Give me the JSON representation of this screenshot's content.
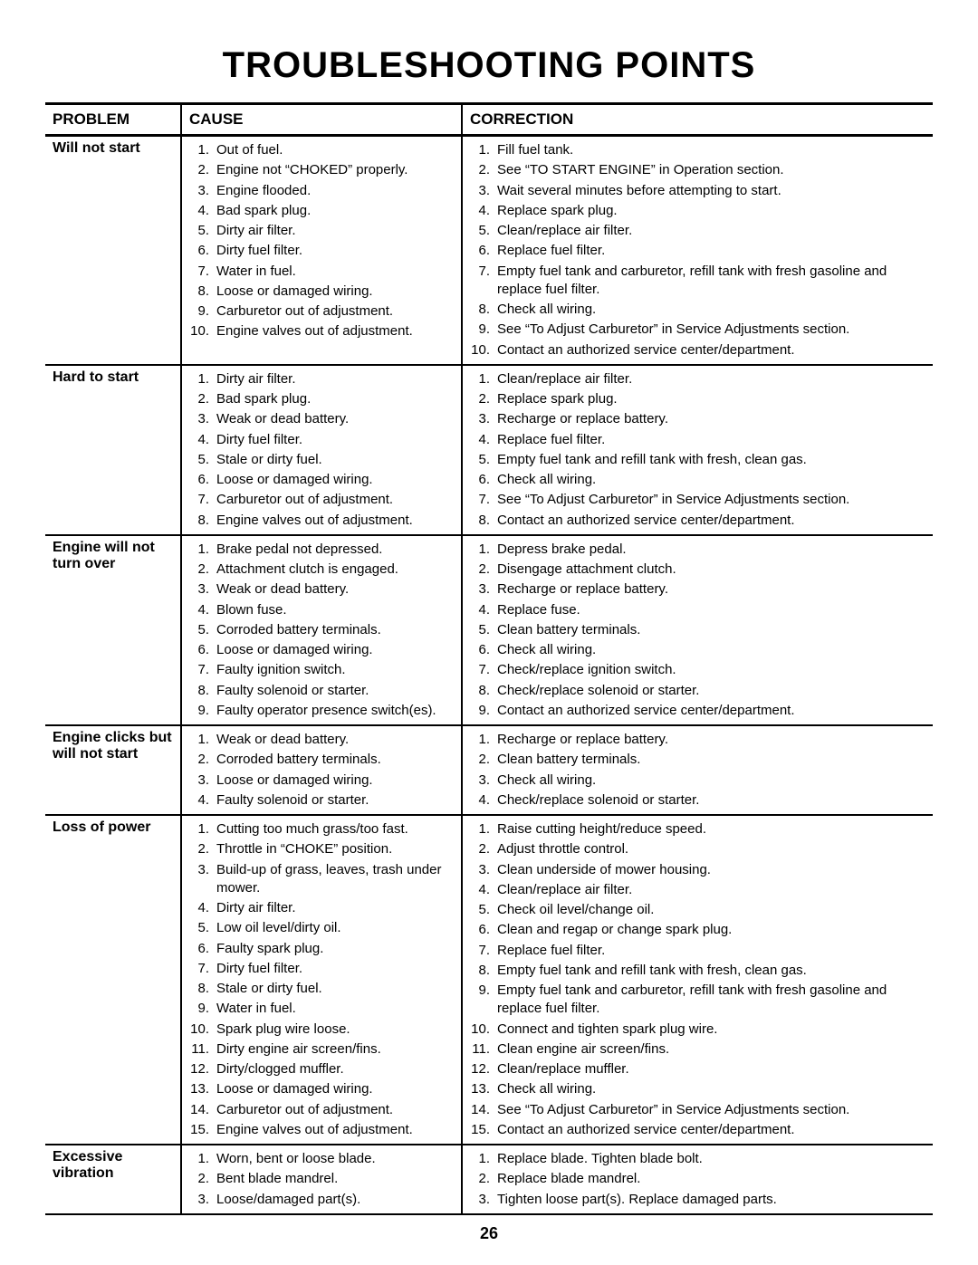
{
  "title": "TROUBLESHOOTING POINTS",
  "page_number": "26",
  "headers": {
    "problem": "PROBLEM",
    "cause": "CAUSE",
    "correction": "CORRECTION"
  },
  "rows": [
    {
      "problem": "Will not start",
      "causes": [
        "Out of fuel.",
        "Engine not “CHOKED” properly.",
        "Engine flooded.",
        "Bad spark plug.",
        "Dirty air filter.",
        "Dirty fuel filter.",
        "Water in fuel.",
        "Loose or damaged wiring.",
        "Carburetor out of adjustment.",
        "Engine valves out of adjustment."
      ],
      "corrections": [
        "Fill fuel tank.",
        "See “TO START ENGINE” in Operation section.",
        "Wait several minutes before attempting to start.",
        "Replace spark plug.",
        "Clean/replace air filter.",
        "Replace fuel filter.",
        "Empty fuel tank and carburetor, refill tank with fresh gasoline and replace fuel filter.",
        "Check all wiring.",
        "See “To Adjust Carburetor” in Service Adjustments section.",
        "Contact an authorized service center/department."
      ]
    },
    {
      "problem": "Hard to start",
      "causes": [
        "Dirty air filter.",
        "Bad spark plug.",
        "Weak or dead battery.",
        "Dirty fuel filter.",
        "Stale or dirty fuel.",
        "Loose or damaged wiring.",
        "Carburetor out of adjustment.",
        "Engine valves out of adjustment."
      ],
      "corrections": [
        "Clean/replace air filter.",
        "Replace spark plug.",
        "Recharge or replace battery.",
        "Replace fuel filter.",
        "Empty fuel tank and refill tank with fresh, clean gas.",
        "Check all wiring.",
        "See “To Adjust Carburetor” in Service Adjustments section.",
        "Contact an authorized service center/department."
      ]
    },
    {
      "problem": "Engine will not turn over",
      "causes": [
        "Brake pedal not depressed.",
        "Attachment clutch is engaged.",
        "Weak or dead battery.",
        "Blown fuse.",
        "Corroded battery terminals.",
        "Loose or damaged wiring.",
        "Faulty ignition switch.",
        "Faulty solenoid or starter.",
        "Faulty operator presence switch(es)."
      ],
      "corrections": [
        "Depress brake pedal.",
        "Disengage attachment clutch.",
        "Recharge or replace battery.",
        "Replace fuse.",
        "Clean battery terminals.",
        "Check all wiring.",
        "Check/replace ignition switch.",
        "Check/replace solenoid or starter.",
        "Contact an authorized service center/department."
      ]
    },
    {
      "problem": "Engine clicks but will not start",
      "causes": [
        "Weak or dead battery.",
        "Corroded battery terminals.",
        "Loose or damaged wiring.",
        "Faulty solenoid or starter."
      ],
      "corrections": [
        "Recharge or replace battery.",
        "Clean battery terminals.",
        "Check all wiring.",
        "Check/replace solenoid or starter."
      ]
    },
    {
      "problem": "Loss of power",
      "causes": [
        "Cutting too much grass/too fast.",
        "Throttle in “CHOKE” position.",
        "Build-up of grass, leaves, trash under mower.",
        "Dirty air filter.",
        "Low oil level/dirty oil.",
        "Faulty spark plug.",
        "Dirty fuel filter.",
        "Stale or dirty fuel.",
        "Water in fuel.",
        "Spark plug wire loose.",
        "Dirty engine air screen/fins.",
        "Dirty/clogged muffler.",
        "Loose or damaged wiring.",
        "Carburetor out of adjustment.",
        "Engine valves out of adjustment."
      ],
      "corrections": [
        "Raise cutting height/reduce speed.",
        "Adjust throttle control.",
        "Clean underside of mower housing.",
        "Clean/replace air filter.",
        "Check oil level/change oil.",
        "Clean and regap or change spark plug.",
        "Replace fuel filter.",
        "Empty fuel tank and refill tank with fresh, clean gas.",
        "Empty fuel tank and carburetor, refill tank with fresh gasoline and replace fuel filter.",
        "Connect and tighten spark plug wire.",
        "Clean engine air screen/fins.",
        "Clean/replace muffler.",
        "Check all wiring.",
        "See “To Adjust Carburetor” in Service Adjustments section.",
        "Contact an authorized service center/department."
      ]
    },
    {
      "problem": "Excessive vibration",
      "causes": [
        "Worn, bent or loose blade.",
        "Bent blade mandrel.",
        "Loose/damaged part(s)."
      ],
      "corrections": [
        "Replace blade. Tighten blade bolt.",
        "Replace blade mandrel.",
        "Tighten loose part(s).  Replace damaged parts."
      ]
    }
  ]
}
